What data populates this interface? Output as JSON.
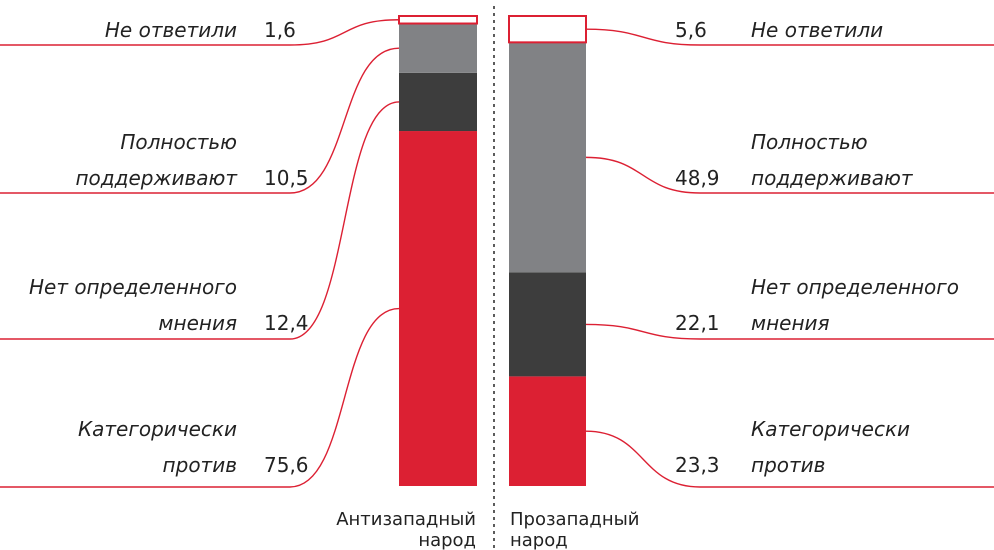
{
  "colors": {
    "red": "#dc2033",
    "dark": "#3d3d3d",
    "gray": "#818285",
    "line": "#dc2033",
    "divider": "#333333"
  },
  "chart_data": {
    "type": "bar",
    "stacked": true,
    "percent": true,
    "categories": [
      "Антизападный народ",
      "Прозападный народ"
    ],
    "category_lines": [
      [
        "Антизападный",
        "народ"
      ],
      [
        "Прозападный",
        "народ"
      ]
    ],
    "series": [
      {
        "name": "Категорически против",
        "label_lines": [
          "Категорически",
          "против"
        ],
        "values": [
          75.6,
          23.3
        ],
        "value_labels": [
          "75,6",
          "23,3"
        ],
        "color": "#dc2033"
      },
      {
        "name": "Нет определенного мнения",
        "label_lines": [
          "Нет определенного",
          "мнения"
        ],
        "values": [
          12.4,
          22.1
        ],
        "value_labels": [
          "12,4",
          "22,1"
        ],
        "color": "#3d3d3d"
      },
      {
        "name": "Полностью поддерживают",
        "label_lines": [
          "Полностью",
          "поддерживают"
        ],
        "values": [
          10.5,
          48.9
        ],
        "value_labels": [
          "10,5",
          "48,9"
        ],
        "color": "#818285"
      },
      {
        "name": "Не ответили",
        "label_lines": [
          "Не ответили"
        ],
        "values": [
          1.6,
          5.6
        ],
        "value_labels": [
          "1,6",
          "5,6"
        ],
        "color": "#ffffff"
      }
    ],
    "title": "",
    "xlabel": "",
    "ylabel": "",
    "ylim": [
      0,
      100
    ],
    "grid": false,
    "legend": "none"
  }
}
